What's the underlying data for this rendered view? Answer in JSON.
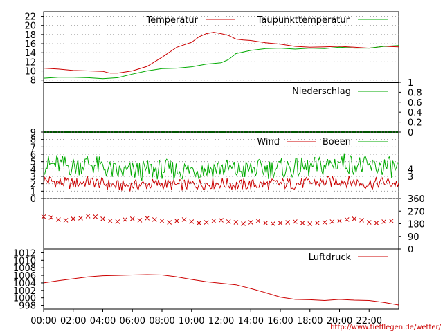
{
  "credit": "http://www.tiefflegen.de/wetter/",
  "time_labels": [
    "00:00",
    "02:00",
    "04:00",
    "06:00",
    "08:00",
    "10:00",
    "12:00",
    "14:00",
    "16:00",
    "18:00",
    "20:00",
    "22:00"
  ],
  "colors": {
    "red": "#cc0000",
    "green": "#00aa00",
    "grid": "#999999",
    "axis": "#000000"
  },
  "chart_data": [
    {
      "type": "line",
      "x_unit": "hour",
      "xlim": [
        0,
        24
      ],
      "ylim": [
        7.5,
        23
      ],
      "yticks": [
        8,
        10,
        12,
        14,
        16,
        18,
        20,
        22
      ],
      "series": [
        {
          "name": "Temperatur",
          "color": "#cc0000",
          "x": [
            0,
            1,
            2,
            3,
            4,
            4.5,
            5,
            6,
            7,
            8,
            9,
            10,
            10.5,
            11,
            11.5,
            12,
            12.5,
            13,
            13.5,
            14,
            15,
            16,
            17,
            18,
            19,
            20,
            21,
            22,
            23,
            24
          ],
          "y": [
            10.6,
            10.4,
            10.1,
            10.0,
            9.9,
            9.5,
            9.5,
            10.0,
            11.0,
            13.0,
            15.2,
            16.3,
            17.5,
            18.2,
            18.5,
            18.2,
            17.8,
            17.0,
            16.8,
            16.7,
            16.2,
            15.9,
            15.4,
            15.2,
            15.3,
            15.4,
            15.2,
            15.0,
            15.4,
            15.3
          ]
        },
        {
          "name": "Taupunkttemperatur",
          "color": "#00aa00",
          "x": [
            0,
            1,
            2,
            3,
            4,
            5,
            6,
            7,
            8,
            9,
            10,
            11,
            12,
            12.5,
            13,
            14,
            15,
            16,
            17,
            18,
            19,
            20,
            21,
            22,
            23,
            24
          ],
          "y": [
            8.4,
            8.6,
            8.6,
            8.5,
            8.3,
            8.5,
            9.3,
            10.0,
            10.5,
            10.6,
            10.9,
            11.5,
            11.8,
            12.5,
            13.8,
            14.5,
            14.9,
            15.0,
            14.8,
            15.0,
            14.9,
            15.2,
            15.0,
            15.0,
            15.4,
            15.6
          ]
        }
      ]
    },
    {
      "type": "line",
      "xlim": [
        0,
        24
      ],
      "ylim": [
        0,
        1
      ],
      "yticks": [
        0,
        0.2,
        0.4,
        0.6,
        0.8,
        1
      ],
      "series": [
        {
          "name": "Niederschlag",
          "color": "#00aa00",
          "x": [
            0,
            24
          ],
          "y": [
            0,
            0
          ]
        }
      ]
    },
    {
      "type": "line",
      "xlim": [
        0,
        24
      ],
      "ylim": [
        0,
        9
      ],
      "yticks": [
        0,
        1,
        2,
        3,
        4,
        5,
        6,
        7,
        8,
        9
      ],
      "right_labels": [
        "4",
        "3"
      ],
      "series": [
        {
          "name": "Wind",
          "color": "#cc0000",
          "x": [
            0,
            1,
            2,
            3,
            4,
            5,
            6,
            7,
            8,
            9,
            10,
            11,
            12,
            13,
            14,
            15,
            16,
            17,
            18,
            19,
            20,
            21,
            22,
            23,
            24
          ],
          "y": [
            2.5,
            2.2,
            2.0,
            2.3,
            2.0,
            1.7,
            1.8,
            1.9,
            2.0,
            1.8,
            1.9,
            2.0,
            2.1,
            1.8,
            1.9,
            1.9,
            2.0,
            2.0,
            2.1,
            2.2,
            2.4,
            2.2,
            2.0,
            2.2,
            2.0
          ]
        },
        {
          "name": "Boeen",
          "color": "#00aa00",
          "x": [
            0,
            1,
            2,
            3,
            4,
            5,
            6,
            7,
            8,
            9,
            10,
            11,
            12,
            13,
            14,
            15,
            16,
            17,
            18,
            19,
            20,
            21,
            22,
            23,
            24
          ],
          "y": [
            4.5,
            4.6,
            4.3,
            4.8,
            4.2,
            3.5,
            3.7,
            3.8,
            4.0,
            3.8,
            3.9,
            4.0,
            4.2,
            3.8,
            3.9,
            4.0,
            4.1,
            4.1,
            4.2,
            4.4,
            5.0,
            4.6,
            4.2,
            4.4,
            4.0
          ]
        }
      ]
    },
    {
      "type": "scatter",
      "xlim": [
        0,
        24
      ],
      "ylim": [
        0,
        360
      ],
      "yticks": [
        0,
        90,
        180,
        270,
        360
      ],
      "series": [
        {
          "name": "",
          "color": "#cc0000",
          "marker": "x",
          "x": [
            0,
            0.5,
            1,
            1.5,
            2,
            2.5,
            3,
            3.5,
            4,
            4.5,
            5,
            5.5,
            6,
            6.5,
            7,
            7.5,
            8,
            8.5,
            9,
            9.5,
            10,
            10.5,
            11,
            11.5,
            12,
            12.5,
            13,
            13.5,
            14,
            14.5,
            15,
            15.5,
            16,
            16.5,
            17,
            17.5,
            18,
            18.5,
            19,
            19.5,
            20,
            20.5,
            21,
            21.5,
            22,
            22.5,
            23,
            23.5
          ],
          "y": [
            230,
            225,
            210,
            205,
            215,
            220,
            235,
            230,
            215,
            200,
            195,
            210,
            215,
            205,
            220,
            210,
            200,
            190,
            200,
            210,
            195,
            185,
            190,
            200,
            205,
            195,
            190,
            180,
            190,
            200,
            185,
            180,
            185,
            190,
            195,
            185,
            180,
            185,
            190,
            195,
            200,
            210,
            215,
            205,
            190,
            185,
            195,
            200
          ]
        }
      ]
    },
    {
      "type": "line",
      "xlim": [
        0,
        24
      ],
      "ylim": [
        997,
        1013
      ],
      "yticks": [
        998,
        1000,
        1002,
        1004,
        1006,
        1008,
        1010,
        1012
      ],
      "series": [
        {
          "name": "Luftdruck",
          "color": "#cc0000",
          "x": [
            0,
            1,
            2,
            3,
            4,
            5,
            6,
            7,
            8,
            9,
            10,
            11,
            12,
            13,
            14,
            15,
            16,
            17,
            18,
            19,
            20,
            21,
            22,
            23,
            24
          ],
          "y": [
            1004.0,
            1004.6,
            1005.1,
            1005.6,
            1005.9,
            1006.0,
            1006.1,
            1006.2,
            1006.1,
            1005.6,
            1004.9,
            1004.3,
            1003.9,
            1003.5,
            1002.5,
            1001.4,
            1000.2,
            999.6,
            999.5,
            999.3,
            999.6,
            999.4,
            999.3,
            998.8,
            998.1
          ]
        }
      ]
    }
  ]
}
